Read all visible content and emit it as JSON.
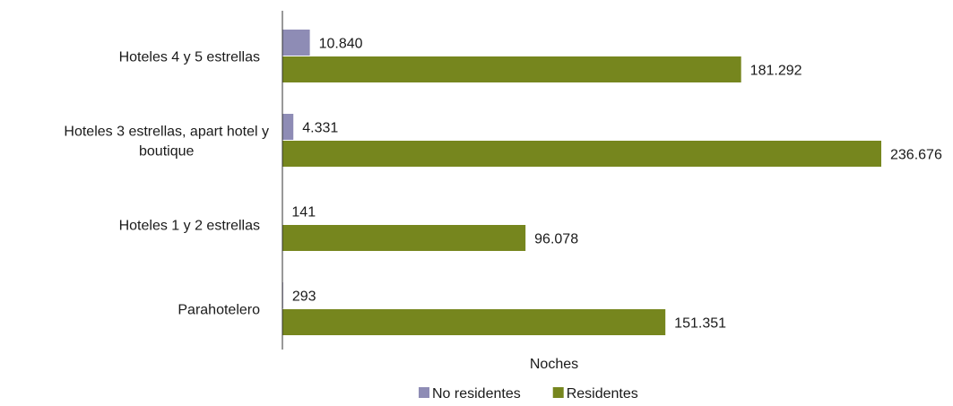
{
  "chart_data": {
    "type": "bar",
    "orientation": "horizontal",
    "categories": [
      [
        "Hoteles 4 y 5 estrellas"
      ],
      [
        "Hoteles 3 estrellas, apart hotel y",
        "boutique"
      ],
      [
        "Hoteles 1 y 2 estrellas"
      ],
      [
        "Parahotelero"
      ]
    ],
    "series": [
      {
        "name": "No residentes",
        "color": "#8e8cb5",
        "values": [
          10840,
          4331,
          141,
          293
        ],
        "labels": [
          "10.840",
          "4.331",
          "141",
          "293"
        ]
      },
      {
        "name": "Residentes",
        "color": "#76861e",
        "values": [
          181292,
          236676,
          96078,
          151351
        ],
        "labels": [
          "181.292",
          "236.676",
          "96.078",
          "151.351"
        ]
      }
    ],
    "xlabel": "Noches",
    "xlim": [
      0,
      250000
    ],
    "grid": false,
    "legend_position": "bottom"
  }
}
